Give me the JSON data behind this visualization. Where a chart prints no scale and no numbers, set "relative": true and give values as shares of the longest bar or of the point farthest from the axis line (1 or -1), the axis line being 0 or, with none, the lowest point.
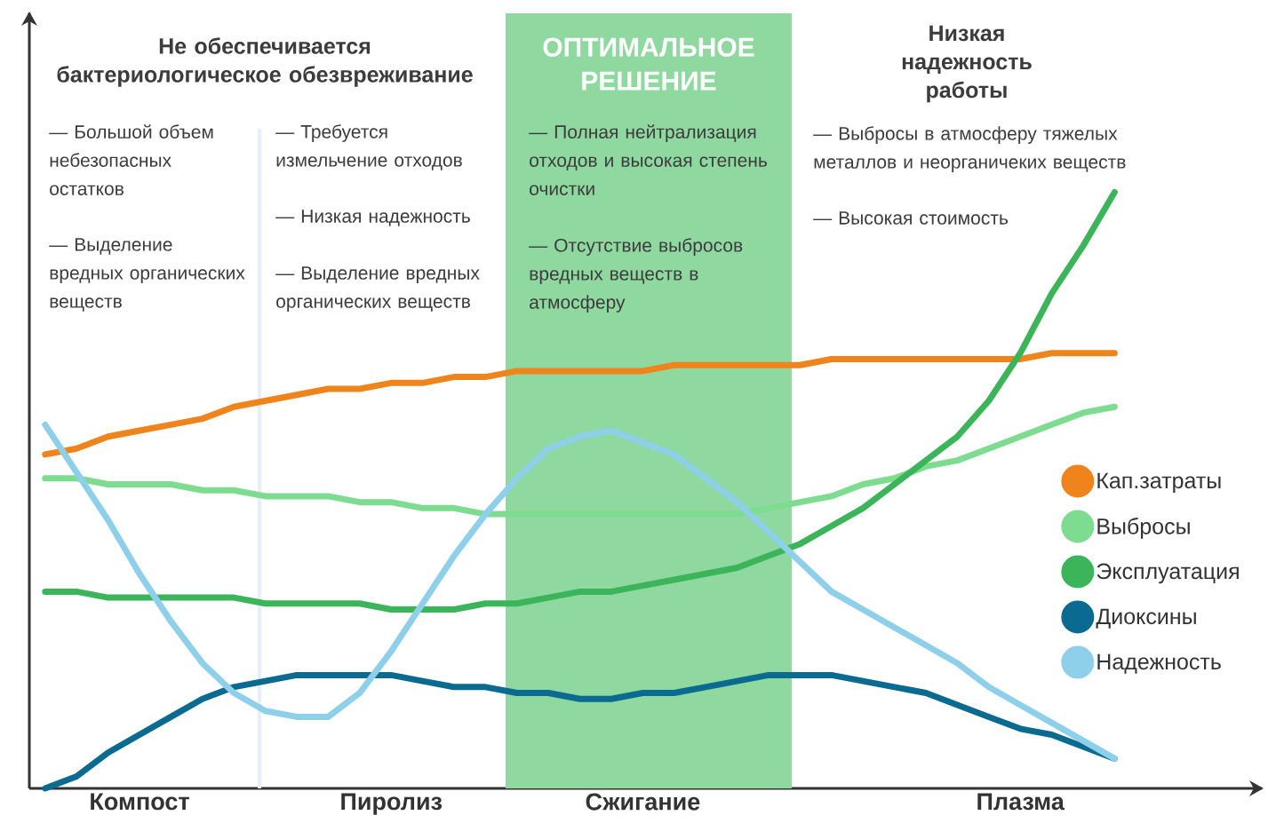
{
  "chart_data": {
    "type": "line",
    "relative": true,
    "categories": [
      null,
      null,
      null,
      "Компост",
      null,
      null,
      null,
      null,
      null,
      null,
      null,
      "Пиролиз",
      null,
      null,
      null,
      null,
      null,
      null,
      null,
      "Сжигание",
      null,
      null,
      null,
      null,
      null,
      null,
      null,
      null,
      null,
      null,
      null,
      "Плазма",
      null,
      null,
      null
    ],
    "series": [
      {
        "name": "Кап.затраты",
        "color": "#f0841c",
        "values": [
          0.56,
          0.57,
          0.59,
          0.6,
          0.61,
          0.62,
          0.64,
          0.65,
          0.66,
          0.67,
          0.67,
          0.68,
          0.68,
          0.69,
          0.69,
          0.7,
          0.7,
          0.7,
          0.7,
          0.7,
          0.71,
          0.71,
          0.71,
          0.71,
          0.71,
          0.72,
          0.72,
          0.72,
          0.72,
          0.72,
          0.72,
          0.72,
          0.73,
          0.73,
          0.73
        ]
      },
      {
        "name": "Выбросы",
        "color": "#7ddc8f",
        "values": [
          0.52,
          0.52,
          0.51,
          0.51,
          0.51,
          0.5,
          0.5,
          0.49,
          0.49,
          0.49,
          0.48,
          0.48,
          0.47,
          0.47,
          0.46,
          0.46,
          0.46,
          0.46,
          0.46,
          0.46,
          0.46,
          0.46,
          0.46,
          0.47,
          0.48,
          0.49,
          0.51,
          0.52,
          0.54,
          0.55,
          0.57,
          0.59,
          0.61,
          0.63,
          0.64
        ]
      },
      {
        "name": "Эксплуатация",
        "color": "#3cb55a",
        "values": [
          0.33,
          0.33,
          0.32,
          0.32,
          0.32,
          0.32,
          0.32,
          0.31,
          0.31,
          0.31,
          0.31,
          0.3,
          0.3,
          0.3,
          0.31,
          0.31,
          0.32,
          0.33,
          0.33,
          0.34,
          0.35,
          0.36,
          0.37,
          0.39,
          0.41,
          0.44,
          0.47,
          0.51,
          0.55,
          0.59,
          0.65,
          0.73,
          0.83,
          0.91,
          1.0
        ]
      },
      {
        "name": "Диоксины",
        "color": "#0a6a8f",
        "values": [
          0.0,
          0.02,
          0.06,
          0.09,
          0.12,
          0.15,
          0.17,
          0.18,
          0.19,
          0.19,
          0.19,
          0.19,
          0.18,
          0.17,
          0.17,
          0.16,
          0.16,
          0.15,
          0.15,
          0.16,
          0.16,
          0.17,
          0.18,
          0.19,
          0.19,
          0.19,
          0.18,
          0.17,
          0.16,
          0.14,
          0.12,
          0.1,
          0.09,
          0.07,
          0.05
        ]
      },
      {
        "name": "Надежность",
        "color": "#8ecfea",
        "values": [
          0.61,
          0.53,
          0.45,
          0.36,
          0.28,
          0.21,
          0.16,
          0.13,
          0.12,
          0.12,
          0.16,
          0.23,
          0.31,
          0.39,
          0.46,
          0.52,
          0.57,
          0.59,
          0.6,
          0.58,
          0.56,
          0.52,
          0.48,
          0.43,
          0.38,
          0.33,
          0.3,
          0.27,
          0.24,
          0.21,
          0.17,
          0.14,
          0.11,
          0.08,
          0.05
        ]
      }
    ],
    "legend": "right",
    "annotations": [
      "Не обеспечивается бактериологическое обезвреживание",
      "— Большой объем небезопасных остатков",
      "— Выделение вредных органических веществ",
      "— Требуется измельчение отходов",
      "— Низкая надежность",
      "— Выделение вредных органических веществ",
      "— Полная нейтрализация отходов и высокая степень очистки",
      "— Отсутствие выбросов вредных веществ в атмосферу",
      "Низкая надежность работы",
      "— Выбросы в атмосферу тяжелых металлов и неорганичеких веществ",
      "— Высокая стоимость",
      "ОПТИМАЛЬНОЕ РЕШЕНИЕ"
    ]
  }
}
